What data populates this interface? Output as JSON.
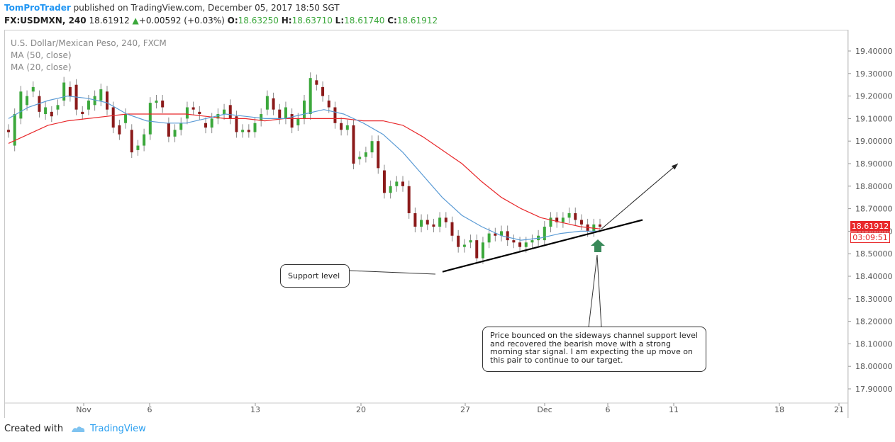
{
  "header": {
    "author": "TomProTrader",
    "published": " published on TradingView.com, December 05, 2017 18:50 SGT",
    "symbol": "FX:USDMXN, 240",
    "last": "18.61912",
    "change_arrow": "▲",
    "change": "+0.00592 (+0.03%)",
    "o_label": "O:",
    "o_value": "18.63250",
    "h_label": "H:",
    "h_value": "18.63710",
    "l_label": "L:",
    "l_value": "18.61740",
    "c_label": "C:",
    "c_value": "18.61912"
  },
  "legend": {
    "title": "U.S. Dollar/Mexican Peso, 240, FXCM",
    "ma50": "MA (50, close)",
    "ma20": "MA (20, close)"
  },
  "annotations": {
    "support_label": "Support level",
    "comment": "Price bounced on the sideways channel support level and recovered the bearish move with a strong morning star signal. I am expecting the up move on this pair to continue to our target."
  },
  "price_tags": {
    "current": "18.61912",
    "countdown": "03:09:51"
  },
  "footer": {
    "created_with": "Created with",
    "brand": "TradingView"
  },
  "colors": {
    "bull": "#3ca83c",
    "bear": "#8b1a1a",
    "ma50": "#e8282b",
    "ma20": "#5b9bd5",
    "tag": "#e8282b",
    "marker": "#3a8a5a"
  },
  "chart_data": {
    "type": "candlestick",
    "symbol": "USDMXN",
    "timeframe": "240",
    "y_axis": {
      "range": [
        17.85,
        19.47
      ],
      "ticks": [
        "19.40000",
        "19.30000",
        "19.20000",
        "19.10000",
        "19.00000",
        "18.90000",
        "18.80000",
        "18.70000",
        "18.60000",
        "18.50000",
        "18.40000",
        "18.30000",
        "18.20000",
        "18.10000",
        "18.00000",
        "17.90000"
      ],
      "side": "right"
    },
    "x_axis": {
      "ticks": [
        "Nov",
        "6",
        "13",
        "20",
        "27",
        "Dec",
        "6",
        "11",
        "18",
        "21"
      ]
    },
    "candles": [
      {
        "o": 19.05,
        "c": 19.04
      },
      {
        "o": 18.98,
        "c": 19.12
      },
      {
        "o": 19.1,
        "c": 19.22
      },
      {
        "o": 19.16,
        "c": 19.2
      },
      {
        "o": 19.22,
        "c": 19.24
      },
      {
        "o": 19.2,
        "c": 19.13
      },
      {
        "o": 19.12,
        "c": 19.15
      },
      {
        "o": 19.13,
        "c": 19.11
      },
      {
        "o": 19.14,
        "c": 19.16
      },
      {
        "o": 19.18,
        "c": 19.26
      },
      {
        "o": 19.24,
        "c": 19.2
      },
      {
        "o": 19.25,
        "c": 19.14
      },
      {
        "o": 19.13,
        "c": 19.12
      },
      {
        "o": 19.14,
        "c": 19.18
      },
      {
        "o": 19.16,
        "c": 19.2
      },
      {
        "o": 19.18,
        "c": 19.23
      },
      {
        "o": 19.22,
        "c": 19.14
      },
      {
        "o": 19.15,
        "c": 19.06
      },
      {
        "o": 19.07,
        "c": 19.03
      },
      {
        "o": 19.08,
        "c": 19.12
      },
      {
        "o": 19.05,
        "c": 18.95
      },
      {
        "o": 18.96,
        "c": 18.98
      },
      {
        "o": 18.98,
        "c": 19.03
      },
      {
        "o": 19.03,
        "c": 19.17
      },
      {
        "o": 19.17,
        "c": 19.18
      },
      {
        "o": 19.18,
        "c": 19.15
      },
      {
        "o": 19.08,
        "c": 19.02
      },
      {
        "o": 19.02,
        "c": 19.05
      },
      {
        "o": 19.05,
        "c": 19.08
      },
      {
        "o": 19.1,
        "c": 19.15
      },
      {
        "o": 19.15,
        "c": 19.14
      },
      {
        "o": 19.13,
        "c": 19.12
      },
      {
        "o": 19.08,
        "c": 19.06
      },
      {
        "o": 19.06,
        "c": 19.1
      },
      {
        "o": 19.1,
        "c": 19.12
      },
      {
        "o": 19.12,
        "c": 19.14
      },
      {
        "o": 19.16,
        "c": 19.1
      },
      {
        "o": 19.11,
        "c": 19.04
      },
      {
        "o": 19.04,
        "c": 19.05
      },
      {
        "o": 19.05,
        "c": 19.04
      },
      {
        "o": 19.04,
        "c": 19.08
      },
      {
        "o": 19.09,
        "c": 19.12
      },
      {
        "o": 19.14,
        "c": 19.2
      },
      {
        "o": 19.19,
        "c": 19.14
      },
      {
        "o": 19.14,
        "c": 19.1
      },
      {
        "o": 19.1,
        "c": 19.15
      },
      {
        "o": 19.12,
        "c": 19.06
      },
      {
        "o": 19.07,
        "c": 19.1
      },
      {
        "o": 19.1,
        "c": 19.18
      },
      {
        "o": 19.12,
        "c": 19.28
      },
      {
        "o": 19.27,
        "c": 19.25
      },
      {
        "o": 19.24,
        "c": 19.2
      },
      {
        "o": 19.18,
        "c": 19.15
      },
      {
        "o": 19.15,
        "c": 19.08
      },
      {
        "o": 19.08,
        "c": 19.05
      },
      {
        "o": 19.05,
        "c": 19.07
      },
      {
        "o": 19.07,
        "c": 18.9
      },
      {
        "o": 18.92,
        "c": 18.93
      },
      {
        "o": 18.93,
        "c": 18.95
      },
      {
        "o": 18.95,
        "c": 19.0
      },
      {
        "o": 19.0,
        "c": 18.88
      },
      {
        "o": 18.87,
        "c": 18.77
      },
      {
        "o": 18.77,
        "c": 18.8
      },
      {
        "o": 18.8,
        "c": 18.82
      },
      {
        "o": 18.82,
        "c": 18.8
      },
      {
        "o": 18.8,
        "c": 18.68
      },
      {
        "o": 18.68,
        "c": 18.62
      },
      {
        "o": 18.62,
        "c": 18.65
      },
      {
        "o": 18.65,
        "c": 18.63
      },
      {
        "o": 18.63,
        "c": 18.62
      },
      {
        "o": 18.62,
        "c": 18.66
      },
      {
        "o": 18.66,
        "c": 18.64
      },
      {
        "o": 18.64,
        "c": 18.58
      },
      {
        "o": 18.58,
        "c": 18.53
      },
      {
        "o": 18.53,
        "c": 18.54
      },
      {
        "o": 18.55,
        "c": 18.56
      },
      {
        "o": 18.56,
        "c": 18.48
      },
      {
        "o": 18.48,
        "c": 18.55
      },
      {
        "o": 18.55,
        "c": 18.59
      },
      {
        "o": 18.59,
        "c": 18.58
      },
      {
        "o": 18.58,
        "c": 18.6
      },
      {
        "o": 18.6,
        "c": 18.56
      },
      {
        "o": 18.56,
        "c": 18.55
      },
      {
        "o": 18.55,
        "c": 18.53
      },
      {
        "o": 18.53,
        "c": 18.55
      },
      {
        "o": 18.55,
        "c": 18.56
      },
      {
        "o": 18.56,
        "c": 18.58
      },
      {
        "o": 18.56,
        "c": 18.62
      },
      {
        "o": 18.62,
        "c": 18.66
      },
      {
        "o": 18.66,
        "c": 18.64
      },
      {
        "o": 18.64,
        "c": 18.66
      },
      {
        "o": 18.66,
        "c": 18.68
      },
      {
        "o": 18.68,
        "c": 18.65
      },
      {
        "o": 18.65,
        "c": 18.63
      },
      {
        "o": 18.63,
        "c": 18.6
      },
      {
        "o": 18.6,
        "c": 18.63
      },
      {
        "o": 18.63,
        "c": 18.62
      }
    ],
    "ma50_values": [
      18.99,
      19.03,
      19.07,
      19.09,
      19.1,
      19.11,
      19.12,
      19.12,
      19.12,
      19.12,
      19.11,
      19.1,
      19.1,
      19.09,
      19.1,
      19.1,
      19.1,
      19.1,
      19.09,
      19.09,
      19.07,
      19.02,
      18.96,
      18.9,
      18.82,
      18.75,
      18.7,
      18.66,
      18.64,
      18.62,
      18.61
    ],
    "ma20_values": [
      19.1,
      19.15,
      19.18,
      19.2,
      19.19,
      19.17,
      19.12,
      19.09,
      19.08,
      19.08,
      19.1,
      19.12,
      19.11,
      19.1,
      19.1,
      19.12,
      19.14,
      19.12,
      19.08,
      19.03,
      18.95,
      18.85,
      18.75,
      18.67,
      18.62,
      18.58,
      18.56,
      18.57,
      18.59,
      18.6,
      18.6
    ],
    "drawings": {
      "support_line": {
        "from_price": 18.42,
        "to_price": 18.65
      },
      "target_arrow": {
        "from_price": 18.61,
        "to_price": 18.9
      }
    }
  }
}
